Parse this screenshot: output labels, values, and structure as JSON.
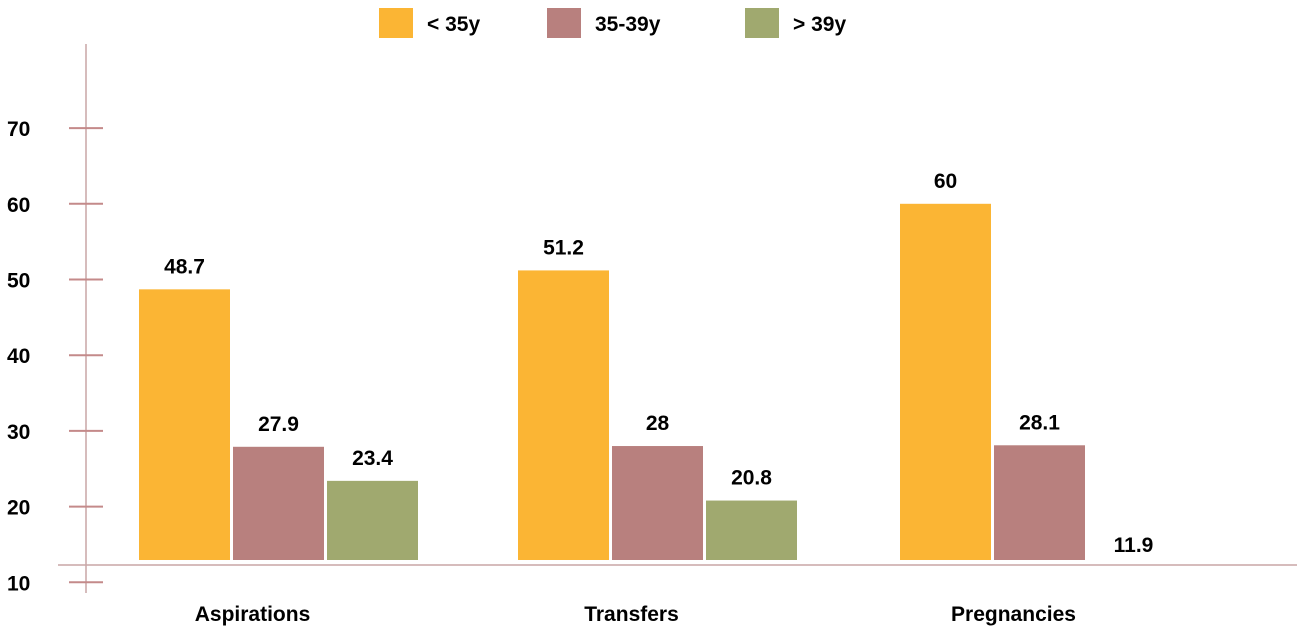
{
  "chart_data": {
    "type": "bar",
    "title": "",
    "xlabel": "",
    "ylabel": "",
    "categories": [
      "Aspirations",
      "Transfers",
      "Pregnancies"
    ],
    "series": [
      {
        "name": "< 35y",
        "values": [
          48.7,
          51.2,
          60
        ],
        "labels": [
          "48.7",
          "51.2",
          "60"
        ],
        "color": "#fbb534"
      },
      {
        "name": "35-39y",
        "values": [
          27.9,
          28,
          28.1
        ],
        "labels": [
          "27.9",
          "28",
          "28.1"
        ],
        "color": "#b8807e"
      },
      {
        "name": "> 39y",
        "values": [
          23.4,
          20.8,
          11.9
        ],
        "labels": [
          "23.4",
          "20.8",
          "11.9"
        ],
        "color": "#a0a96f"
      }
    ],
    "yticks": [
      "10",
      "20",
      "30",
      "40",
      "50",
      "60",
      "70"
    ],
    "ylim": [
      0,
      70
    ],
    "grid": false,
    "legend_position": "top-center",
    "axis_color": "#c48a8a"
  }
}
